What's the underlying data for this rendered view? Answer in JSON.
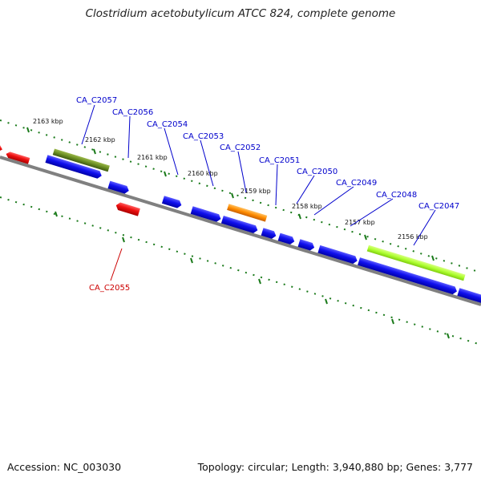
{
  "title": "Clostridium acetobutylicum ATCC 824, complete genome",
  "footer": {
    "accession": "Accession: NC_003030",
    "topology": "Topology: circular; Length: 3,940,880 bp; Genes: 3,777"
  },
  "colors": {
    "forward_gene": "#0a0ae6",
    "reverse_gene": "#e60a0a",
    "feature_dark_green": "#6b8e23",
    "feature_light_green": "#adff2f",
    "feature_orange": "#ff8c00",
    "backbone": "#808080",
    "ticks": "#1a7a1a",
    "label_forward": "#0000cc",
    "label_reverse": "#cc0000"
  },
  "kbp_labels": [
    "2163 kbp",
    "2162 kbp",
    "2161 kbp",
    "2160 kbp",
    "2159 kbp",
    "2158 kbp",
    "2157 kbp",
    "2156 kbp"
  ],
  "gene_labels": [
    {
      "name": "CA_C2057",
      "strand": "forward"
    },
    {
      "name": "CA_C2056",
      "strand": "forward"
    },
    {
      "name": "CA_C2054",
      "strand": "forward"
    },
    {
      "name": "CA_C2053",
      "strand": "forward"
    },
    {
      "name": "CA_C2052",
      "strand": "forward"
    },
    {
      "name": "CA_C2051",
      "strand": "forward"
    },
    {
      "name": "CA_C2050",
      "strand": "forward"
    },
    {
      "name": "CA_C2049",
      "strand": "forward"
    },
    {
      "name": "CA_C2048",
      "strand": "forward"
    },
    {
      "name": "CA_C2047",
      "strand": "forward"
    },
    {
      "name": "CA_C2055",
      "strand": "reverse"
    }
  ]
}
